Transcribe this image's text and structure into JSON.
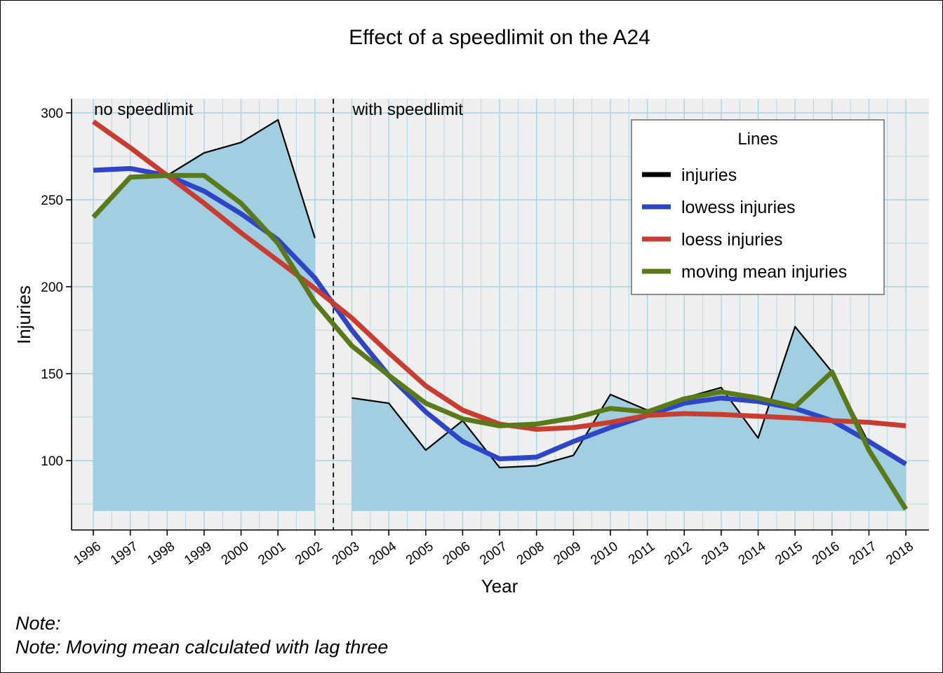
{
  "chart_data": {
    "type": "line",
    "title": "Effect of a speedlimit on the A24",
    "xlabel": "Year",
    "ylabel": "Injuries",
    "ylim": [
      62,
      308
    ],
    "y_ticks": [
      100,
      150,
      200,
      250,
      300
    ],
    "area_baseline": 71,
    "x": [
      1996,
      1997,
      1998,
      1999,
      2000,
      2001,
      2002,
      2003,
      2004,
      2005,
      2006,
      2007,
      2008,
      2009,
      2010,
      2011,
      2012,
      2013,
      2014,
      2015,
      2016,
      2017,
      2018
    ],
    "x_tick_labels": [
      "1996",
      "1997",
      "1998",
      "1999",
      "2000",
      "2001",
      "2002",
      "2003",
      "2004",
      "2005",
      "2006",
      "2007",
      "2008",
      "2009",
      "2010",
      "2011",
      "2012",
      "2013",
      "2014",
      "2015",
      "2016",
      "2017",
      "2018"
    ],
    "series": [
      {
        "key": "injuries",
        "name": "injuries",
        "color": "#000000",
        "segments": [
          {
            "x": [
              1996,
              1997,
              1998,
              1999,
              2000,
              2001,
              2002
            ],
            "y": [
              240,
              263,
              264,
              277,
              283,
              296,
              228
            ]
          },
          {
            "x": [
              2003,
              2004,
              2005,
              2006,
              2007,
              2008,
              2009,
              2010,
              2011,
              2012,
              2013,
              2014,
              2015,
              2016,
              2017,
              2018
            ],
            "y": [
              136,
              133,
              106,
              123,
              96,
              97,
              103,
              138,
              129,
              136,
              142,
              113,
              177,
              151,
              110,
              98
            ]
          }
        ]
      },
      {
        "key": "lowess",
        "name": "lowess injuries",
        "color": "#2e45c8",
        "x": [
          1996,
          1997,
          1998,
          1999,
          2000,
          2001,
          2002,
          2003,
          2004,
          2005,
          2006,
          2007,
          2008,
          2009,
          2010,
          2011,
          2012,
          2013,
          2014,
          2015,
          2016,
          2017,
          2018
        ],
        "y": [
          267,
          268,
          264,
          255,
          242,
          227,
          205,
          175,
          149,
          128,
          111,
          101,
          102,
          111,
          119,
          126,
          133,
          136,
          134,
          130,
          123,
          111,
          98
        ]
      },
      {
        "key": "loess",
        "name": "loess injuries",
        "color": "#c93c31",
        "x": [
          1996,
          1997,
          1998,
          1999,
          2000,
          2001,
          2002,
          2003,
          2004,
          2005,
          2006,
          2007,
          2008,
          2009,
          2010,
          2011,
          2012,
          2013,
          2014,
          2015,
          2016,
          2017,
          2018
        ],
        "y": [
          295,
          280,
          264,
          248,
          231,
          215,
          199,
          182,
          162,
          143,
          129,
          121,
          118,
          119,
          122,
          126,
          127,
          126.5,
          125.5,
          124.5,
          123,
          122,
          120
        ]
      },
      {
        "key": "moving",
        "name": "moving mean injuries",
        "color": "#5a7a1a",
        "x": [
          1996,
          1997,
          1998,
          1999,
          2000,
          2001,
          2002,
          2003,
          2004,
          2005,
          2006,
          2007,
          2008,
          2009,
          2010,
          2011,
          2012,
          2013,
          2014,
          2015,
          2016,
          2017,
          2018
        ],
        "y": [
          240,
          263,
          264,
          264,
          248,
          225,
          191,
          166,
          149,
          133,
          124,
          120,
          121,
          124.5,
          130,
          128,
          135.5,
          139.5,
          136,
          131,
          151,
          106,
          72
        ]
      }
    ],
    "divider_x": 2002.5,
    "annotations": [
      {
        "text": "no speedlimit",
        "x": 1996,
        "y": 300
      },
      {
        "text": "with speedlimit",
        "x": 2003,
        "y": 300
      }
    ],
    "legend": {
      "title": "Lines",
      "placement": "top-right",
      "entries": [
        "injuries",
        "lowess injuries",
        "loess injuries",
        "moving mean injuries"
      ]
    },
    "grid": true,
    "colors": {
      "panel_background": "#efefef",
      "grid": "#a8d4e3",
      "area_fill": "#a1cfe1"
    }
  },
  "notes": {
    "line1": "Note:",
    "line2": "Note: Moving mean calculated with lag three"
  }
}
